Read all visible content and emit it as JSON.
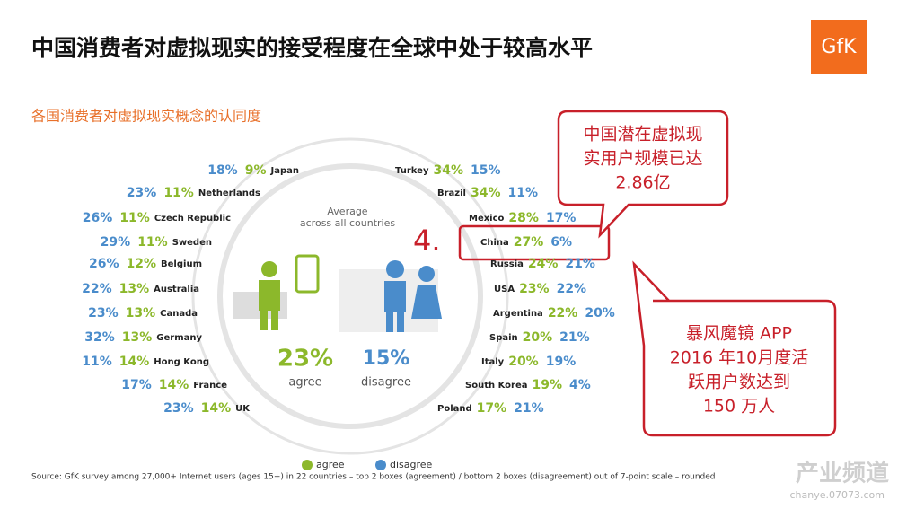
{
  "title": "中国消费者对虚拟现实的接受程度在全球中处于较高水平",
  "logo": "GfK",
  "subtitle": "各国消费者对虚拟现实概念的认同度",
  "left_rows": [
    {
      "disagree": "18%",
      "agree": "9%",
      "country": "Japan"
    },
    {
      "disagree": "23%",
      "agree": "11%",
      "country": "Netherlands"
    },
    {
      "disagree": "26%",
      "agree": "11%",
      "country": "Czech Republic"
    },
    {
      "disagree": "29%",
      "agree": "11%",
      "country": "Sweden"
    },
    {
      "disagree": "26%",
      "agree": "12%",
      "country": "Belgium"
    },
    {
      "disagree": "22%",
      "agree": "13%",
      "country": "Australia"
    },
    {
      "disagree": "23%",
      "agree": "13%",
      "country": "Canada"
    },
    {
      "disagree": "32%",
      "agree": "13%",
      "country": "Germany"
    },
    {
      "disagree": "11%",
      "agree": "14%",
      "country": "Hong Kong"
    },
    {
      "disagree": "17%",
      "agree": "14%",
      "country": "France"
    },
    {
      "disagree": "23%",
      "agree": "14%",
      "country": "UK"
    }
  ],
  "right_rows": [
    {
      "country": "Turkey",
      "agree": "34%",
      "disagree": "15%"
    },
    {
      "country": "Brazil",
      "agree": "34%",
      "disagree": "11%"
    },
    {
      "country": "Mexico",
      "agree": "28%",
      "disagree": "17%"
    },
    {
      "country": "China",
      "agree": "27%",
      "disagree": "6%"
    },
    {
      "country": "Russia",
      "agree": "24%",
      "disagree": "21%"
    },
    {
      "country": "USA",
      "agree": "23%",
      "disagree": "22%"
    },
    {
      "country": "Argentina",
      "agree": "22%",
      "disagree": "20%"
    },
    {
      "country": "Spain",
      "agree": "20%",
      "disagree": "21%"
    },
    {
      "country": "Italy",
      "agree": "20%",
      "disagree": "19%"
    },
    {
      "country": "South Korea",
      "agree": "19%",
      "disagree": "4%"
    },
    {
      "country": "Poland",
      "agree": "17%",
      "disagree": "21%"
    }
  ],
  "average": {
    "heading_1": "Average",
    "heading_2": "across all countries",
    "agree_value": "23%",
    "agree_label": "agree",
    "disagree_value": "15%",
    "disagree_label": "disagree"
  },
  "rank": "4.",
  "callout_1": [
    "中国潜在虚拟现",
    "实用户规模已达",
    "2.86亿"
  ],
  "callout_2": [
    "暴风魔镜 APP",
    "2016 年10月度活",
    "跃用户数达到",
    "150 万人"
  ],
  "legend": {
    "agree": "agree",
    "disagree": "disagree"
  },
  "source": "Source: GfK survey among 27,000+ Internet users (ages 15+) in 22 countries – top 2 boxes (agreement) / bottom 2 boxes (disagreement) out of 7-point scale – rounded",
  "watermark": {
    "name": "产业频道",
    "url": "chanye.07073.com"
  }
}
